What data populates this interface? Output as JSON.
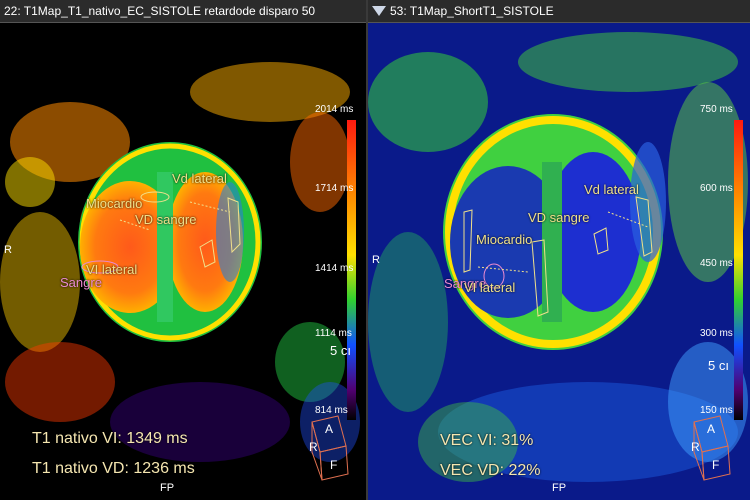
{
  "viewport_left": {
    "title": "22: T1Map_T1_nativo_EC_SISTOLE retardode disparo 50",
    "scale_ticks": [
      "2014 ms",
      "1714 ms",
      "1414 ms",
      "1114 ms",
      "814 ms"
    ],
    "scale_unit": "5 cı",
    "roi_labels": {
      "vd_lateral": "Vd lateral",
      "miocardio": "Miocardio",
      "vd_sangre": "VD sangre",
      "vi_lateral": "VI lateral",
      "sangre": "Sangre"
    },
    "results": {
      "line1": "T1 nativo VI: 1349 ms",
      "line2": "T1 nativo VD: 1236 ms"
    },
    "orient": {
      "left": "R",
      "bottom": "FP"
    },
    "cube": {
      "a": "A",
      "r": "R",
      "f": "F"
    }
  },
  "viewport_right": {
    "title": "53: T1Map_ShortT1_SISTOLE",
    "scale_ticks": [
      "750 ms",
      "600 ms",
      "450 ms",
      "300 ms",
      "150 ms"
    ],
    "scale_unit": "5 cı",
    "roi_labels": {
      "vd_lateral": "Vd lateral",
      "vd_sangre": "VD sangre",
      "miocardio": "Miocardio",
      "sangre": "Sangre",
      "vi_lateral": "VI lateral"
    },
    "results": {
      "line1": "VEC VI: 31%",
      "line2": "VEC VD: 22%"
    },
    "orient": {
      "left": "R",
      "bottom": "FP"
    },
    "cube": {
      "a": "A",
      "r": "R",
      "f": "F"
    }
  },
  "colors": {
    "titlebar": "#2b2b2b",
    "left_bg": "#000000",
    "right_bg": "#0a1a8a",
    "result_text": "#f5e6b0",
    "roi_yellow": "#f0e08a",
    "roi_pink": "#e98ad0"
  }
}
